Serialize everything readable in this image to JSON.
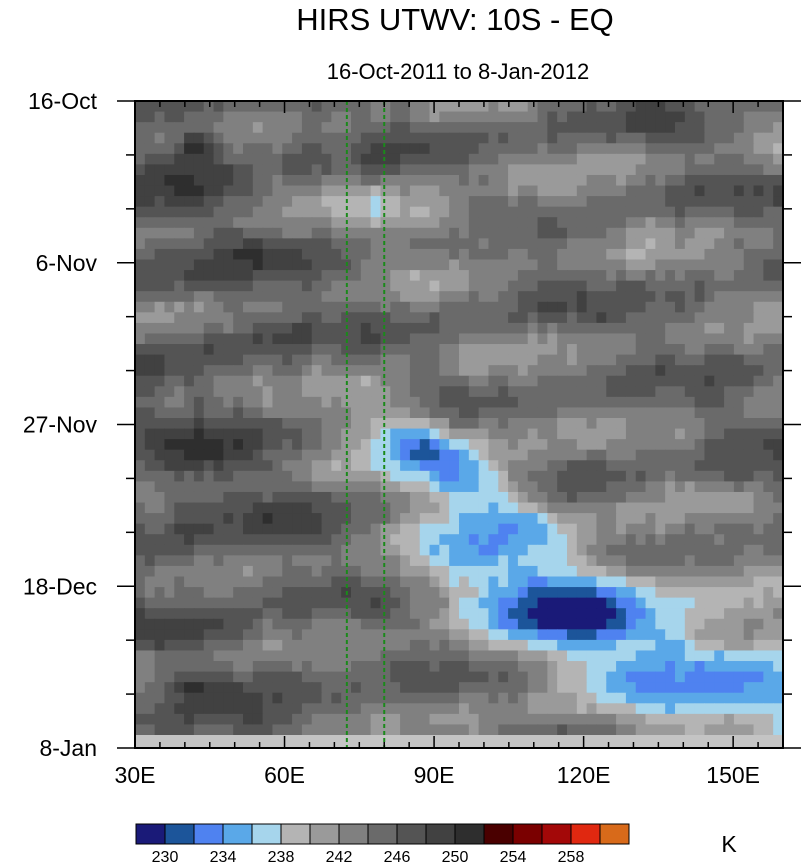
{
  "chart_data": {
    "type": "heatmap",
    "title": "HIRS UTWV: 10S - EQ",
    "subtitle": "16-Oct-2011 to 8-Jan-2012",
    "xlabel": "",
    "ylabel": "",
    "xlim": [
      30,
      160
    ],
    "ylim_days": [
      0,
      84
    ],
    "x_ticks": [
      {
        "value": 30,
        "label": "30E"
      },
      {
        "value": 60,
        "label": "60E"
      },
      {
        "value": 90,
        "label": "90E"
      },
      {
        "value": 120,
        "label": "120E"
      },
      {
        "value": 150,
        "label": "150E"
      }
    ],
    "y_ticks": [
      {
        "value": 0,
        "label": "16-Oct"
      },
      {
        "value": 21,
        "label": "6-Nov"
      },
      {
        "value": 42,
        "label": "27-Nov"
      },
      {
        "value": 63,
        "label": "18-Dec"
      },
      {
        "value": 84,
        "label": "8-Jan"
      }
    ],
    "reference_lines_lon": [
      72.5,
      80
    ],
    "colorbar": {
      "unit": "K",
      "levels": [
        228,
        230,
        232,
        234,
        236,
        238,
        240,
        242,
        244,
        246,
        248,
        250,
        252,
        254,
        256,
        258,
        260
      ],
      "colors": [
        "#1a1a78",
        "#1c559a",
        "#4f82f0",
        "#5aa8e8",
        "#a6d5ec",
        "#b4b4b4",
        "#9a9a9a",
        "#808080",
        "#6a6a6a",
        "#545454",
        "#414141",
        "#2e2e2e",
        "#4a0000",
        "#7a0000",
        "#a30808",
        "#e02810",
        "#d86a1a"
      ],
      "tick_labels": [
        "230",
        "234",
        "238",
        "242",
        "246",
        "250",
        "254",
        "258"
      ]
    }
  }
}
